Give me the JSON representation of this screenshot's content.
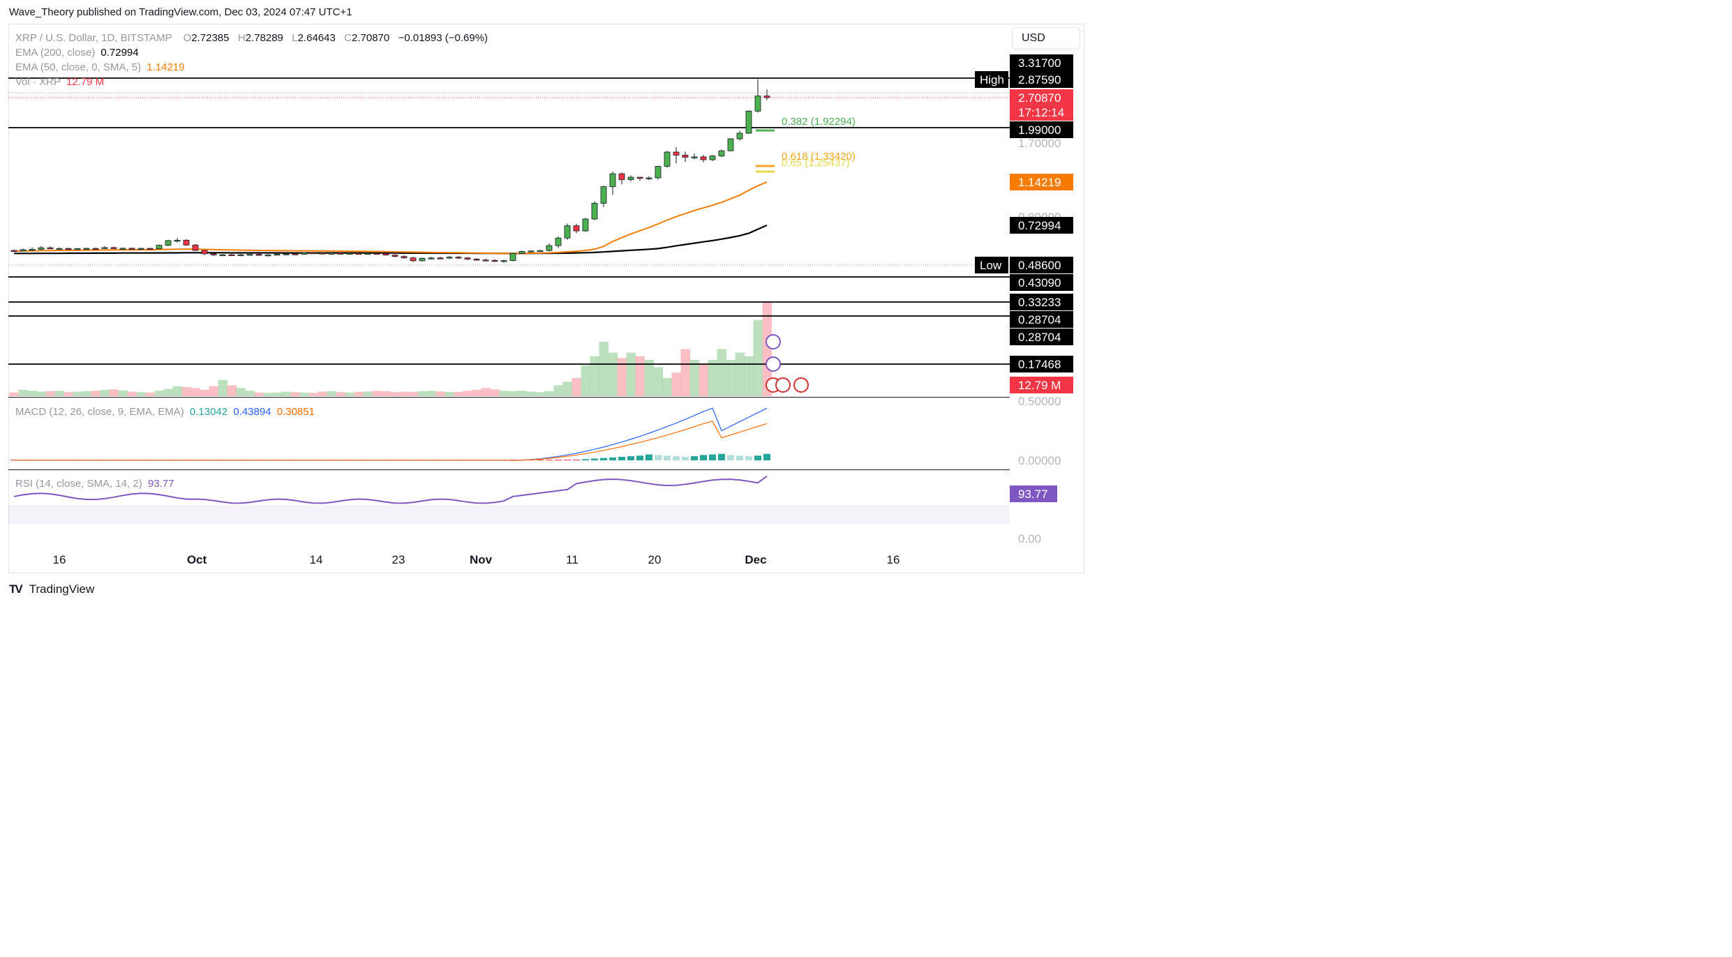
{
  "header": {
    "published_by": "Wave_Theory published on TradingView.com, Dec 03, 2024 07:47 UTC+1"
  },
  "legend": {
    "symbol": "XRP / U.S. Dollar, 1D, BITSTAMP",
    "o_label": "O",
    "o_value": "2.72385",
    "h_label": "H",
    "h_value": "2.78289",
    "l_label": "L",
    "l_value": "2.64643",
    "c_label": "C",
    "c_value": "2.70870",
    "change": "−0.01893 (−0.69%)",
    "ema200_label": "EMA (200, close)",
    "ema200_value": "0.72994",
    "ema50_label": "EMA (50, close, 0, SMA, 5)",
    "ema50_value": "1.14219",
    "vol_label": "Vol · XRP",
    "vol_value": "12.79 M"
  },
  "currency_button": "USD",
  "price_scale": {
    "labels": [
      {
        "text": "3.31700",
        "style": "black"
      },
      {
        "text": "2.87590",
        "style": "black",
        "tag": "High"
      },
      {
        "text": "2.70870",
        "style": "red"
      },
      {
        "text": "17:12:14",
        "style": "red"
      },
      {
        "text": "1.99000",
        "style": "black"
      },
      {
        "text": "1.70000",
        "style": "faded"
      },
      {
        "text": "1.14219",
        "style": "orange"
      },
      {
        "text": "0.80000",
        "style": "faded"
      },
      {
        "text": "0.72994",
        "style": "black"
      },
      {
        "text": "0.48600",
        "style": "black",
        "tag": "Low"
      },
      {
        "text": "0.43090",
        "style": "black"
      },
      {
        "text": "0.33233",
        "style": "black"
      },
      {
        "text": "0.28704",
        "style": "black"
      },
      {
        "text": "0.28704",
        "style": "black"
      },
      {
        "text": "0.17468",
        "style": "black"
      },
      {
        "text": "12.79 M",
        "style": "red"
      }
    ]
  },
  "fib": {
    "l382": "0.382 (1.92294)",
    "l618": "0.618 (1.33420)",
    "l65": "0.65 (1.25437)"
  },
  "macd": {
    "label": "MACD (12, 26, close, 9, EMA, EMA)",
    "hist": "0.13042",
    "macd": "0.43894",
    "signal": "0.30851",
    "scale_top": "0.50000",
    "scale_zero": "0.00000"
  },
  "rsi": {
    "label": "RSI (14, close, SMA, 14, 2)",
    "value": "93.77",
    "scale_zero": "0.00"
  },
  "time_axis": [
    "16",
    "Oct",
    "14",
    "23",
    "Nov",
    "11",
    "20",
    "Dec",
    "16"
  ],
  "footer": {
    "brand": "TradingView"
  },
  "colors": {
    "up": "#4caf50",
    "down": "#f23645",
    "ema50": "#f57c00",
    "ema200": "#000000",
    "macd": "#2962ff",
    "signal": "#ff6d00",
    "rsi": "#7e57c2",
    "fib382": "#4caf50",
    "fib618": "#f5a623",
    "fib65": "#e8d84a",
    "vol_up": "#a5d6a7",
    "vol_down": "#f7a9b0"
  },
  "chart_data": {
    "type": "candlestick",
    "symbol": "XRP / U.S. Dollar",
    "interval": "1D",
    "exchange": "BITSTAMP",
    "x_ticks": [
      "16",
      "Oct",
      "14",
      "23",
      "Nov",
      "11",
      "20",
      "Dec",
      "16"
    ],
    "candles": [
      {
        "o": 0.576,
        "h": 0.584,
        "l": 0.568,
        "c": 0.57
      },
      {
        "o": 0.57,
        "h": 0.598,
        "l": 0.566,
        "c": 0.585
      },
      {
        "o": 0.585,
        "h": 0.605,
        "l": 0.578,
        "c": 0.589
      },
      {
        "o": 0.589,
        "h": 0.612,
        "l": 0.581,
        "c": 0.603
      },
      {
        "o": 0.603,
        "h": 0.61,
        "l": 0.59,
        "c": 0.594
      },
      {
        "o": 0.594,
        "h": 0.605,
        "l": 0.586,
        "c": 0.598
      },
      {
        "o": 0.598,
        "h": 0.603,
        "l": 0.589,
        "c": 0.596
      },
      {
        "o": 0.596,
        "h": 0.601,
        "l": 0.59,
        "c": 0.597
      },
      {
        "o": 0.597,
        "h": 0.604,
        "l": 0.592,
        "c": 0.599
      },
      {
        "o": 0.599,
        "h": 0.603,
        "l": 0.593,
        "c": 0.597
      },
      {
        "o": 0.597,
        "h": 0.611,
        "l": 0.593,
        "c": 0.604
      },
      {
        "o": 0.604,
        "h": 0.609,
        "l": 0.595,
        "c": 0.599
      },
      {
        "o": 0.599,
        "h": 0.604,
        "l": 0.594,
        "c": 0.6
      },
      {
        "o": 0.6,
        "h": 0.604,
        "l": 0.595,
        "c": 0.598
      },
      {
        "o": 0.598,
        "h": 0.603,
        "l": 0.594,
        "c": 0.599
      },
      {
        "o": 0.599,
        "h": 0.603,
        "l": 0.591,
        "c": 0.595
      },
      {
        "o": 0.595,
        "h": 0.62,
        "l": 0.593,
        "c": 0.616
      },
      {
        "o": 0.616,
        "h": 0.645,
        "l": 0.611,
        "c": 0.641
      },
      {
        "o": 0.641,
        "h": 0.655,
        "l": 0.63,
        "c": 0.643
      },
      {
        "o": 0.643,
        "h": 0.648,
        "l": 0.612,
        "c": 0.617
      },
      {
        "o": 0.617,
        "h": 0.622,
        "l": 0.57,
        "c": 0.577
      },
      {
        "o": 0.577,
        "h": 0.582,
        "l": 0.534,
        "c": 0.541
      },
      {
        "o": 0.541,
        "h": 0.548,
        "l": 0.528,
        "c": 0.535
      },
      {
        "o": 0.535,
        "h": 0.541,
        "l": 0.529,
        "c": 0.536
      },
      {
        "o": 0.536,
        "h": 0.541,
        "l": 0.529,
        "c": 0.534
      },
      {
        "o": 0.534,
        "h": 0.54,
        "l": 0.528,
        "c": 0.536
      },
      {
        "o": 0.536,
        "h": 0.543,
        "l": 0.532,
        "c": 0.538
      },
      {
        "o": 0.538,
        "h": 0.543,
        "l": 0.53,
        "c": 0.533
      },
      {
        "o": 0.533,
        "h": 0.54,
        "l": 0.529,
        "c": 0.535
      },
      {
        "o": 0.535,
        "h": 0.542,
        "l": 0.531,
        "c": 0.539
      },
      {
        "o": 0.539,
        "h": 0.545,
        "l": 0.533,
        "c": 0.541
      },
      {
        "o": 0.541,
        "h": 0.546,
        "l": 0.534,
        "c": 0.538
      },
      {
        "o": 0.538,
        "h": 0.556,
        "l": 0.535,
        "c": 0.552
      },
      {
        "o": 0.552,
        "h": 0.56,
        "l": 0.545,
        "c": 0.549
      },
      {
        "o": 0.549,
        "h": 0.555,
        "l": 0.543,
        "c": 0.546
      },
      {
        "o": 0.546,
        "h": 0.552,
        "l": 0.54,
        "c": 0.548
      },
      {
        "o": 0.548,
        "h": 0.553,
        "l": 0.541,
        "c": 0.545
      },
      {
        "o": 0.545,
        "h": 0.551,
        "l": 0.539,
        "c": 0.547
      },
      {
        "o": 0.547,
        "h": 0.552,
        "l": 0.54,
        "c": 0.544
      },
      {
        "o": 0.544,
        "h": 0.55,
        "l": 0.538,
        "c": 0.546
      },
      {
        "o": 0.546,
        "h": 0.551,
        "l": 0.539,
        "c": 0.543
      },
      {
        "o": 0.543,
        "h": 0.549,
        "l": 0.531,
        "c": 0.534
      },
      {
        "o": 0.534,
        "h": 0.539,
        "l": 0.523,
        "c": 0.527
      },
      {
        "o": 0.527,
        "h": 0.533,
        "l": 0.516,
        "c": 0.52
      },
      {
        "o": 0.52,
        "h": 0.526,
        "l": 0.501,
        "c": 0.506
      },
      {
        "o": 0.506,
        "h": 0.522,
        "l": 0.503,
        "c": 0.518
      },
      {
        "o": 0.518,
        "h": 0.525,
        "l": 0.512,
        "c": 0.52
      },
      {
        "o": 0.52,
        "h": 0.526,
        "l": 0.514,
        "c": 0.519
      },
      {
        "o": 0.519,
        "h": 0.529,
        "l": 0.514,
        "c": 0.524
      },
      {
        "o": 0.524,
        "h": 0.529,
        "l": 0.515,
        "c": 0.52
      },
      {
        "o": 0.52,
        "h": 0.525,
        "l": 0.509,
        "c": 0.514
      },
      {
        "o": 0.514,
        "h": 0.519,
        "l": 0.505,
        "c": 0.51
      },
      {
        "o": 0.51,
        "h": 0.516,
        "l": 0.503,
        "c": 0.508
      },
      {
        "o": 0.508,
        "h": 0.513,
        "l": 0.5,
        "c": 0.505
      },
      {
        "o": 0.505,
        "h": 0.512,
        "l": 0.497,
        "c": 0.507
      },
      {
        "o": 0.507,
        "h": 0.549,
        "l": 0.504,
        "c": 0.545
      },
      {
        "o": 0.545,
        "h": 0.575,
        "l": 0.54,
        "c": 0.566
      },
      {
        "o": 0.566,
        "h": 0.579,
        "l": 0.554,
        "c": 0.571
      },
      {
        "o": 0.571,
        "h": 0.584,
        "l": 0.561,
        "c": 0.575
      },
      {
        "o": 0.575,
        "h": 0.626,
        "l": 0.565,
        "c": 0.614
      },
      {
        "o": 0.614,
        "h": 0.665,
        "l": 0.602,
        "c": 0.655
      },
      {
        "o": 0.655,
        "h": 0.744,
        "l": 0.645,
        "c": 0.727
      },
      {
        "o": 0.727,
        "h": 0.742,
        "l": 0.682,
        "c": 0.696
      },
      {
        "o": 0.696,
        "h": 0.792,
        "l": 0.69,
        "c": 0.782
      },
      {
        "o": 0.782,
        "h": 0.938,
        "l": 0.772,
        "c": 0.92
      },
      {
        "o": 0.92,
        "h": 1.1,
        "l": 0.885,
        "c": 1.09
      },
      {
        "o": 1.09,
        "h": 1.271,
        "l": 1.002,
        "c": 1.243
      },
      {
        "o": 1.243,
        "h": 1.26,
        "l": 1.115,
        "c": 1.171
      },
      {
        "o": 1.171,
        "h": 1.223,
        "l": 1.148,
        "c": 1.2
      },
      {
        "o": 1.2,
        "h": 1.205,
        "l": 1.158,
        "c": 1.186
      },
      {
        "o": 1.186,
        "h": 1.21,
        "l": 1.165,
        "c": 1.192
      },
      {
        "o": 1.192,
        "h": 1.348,
        "l": 1.17,
        "c": 1.34
      },
      {
        "o": 1.34,
        "h": 1.57,
        "l": 1.32,
        "c": 1.55
      },
      {
        "o": 1.55,
        "h": 1.63,
        "l": 1.384,
        "c": 1.502
      },
      {
        "o": 1.502,
        "h": 1.558,
        "l": 1.401,
        "c": 1.47
      },
      {
        "o": 1.47,
        "h": 1.53,
        "l": 1.439,
        "c": 1.476
      },
      {
        "o": 1.476,
        "h": 1.504,
        "l": 1.396,
        "c": 1.434
      },
      {
        "o": 1.434,
        "h": 1.506,
        "l": 1.414,
        "c": 1.49
      },
      {
        "o": 1.49,
        "h": 1.59,
        "l": 1.473,
        "c": 1.57
      },
      {
        "o": 1.57,
        "h": 1.8,
        "l": 1.563,
        "c": 1.787
      },
      {
        "o": 1.787,
        "h": 1.968,
        "l": 1.751,
        "c": 1.91
      },
      {
        "o": 1.91,
        "h": 2.397,
        "l": 1.895,
        "c": 2.38
      },
      {
        "o": 2.38,
        "h": 2.883,
        "l": 2.352,
        "c": 2.724
      },
      {
        "o": 2.724,
        "h": 2.783,
        "l": 2.646,
        "c": 2.709
      }
    ],
    "ema50": [
      0.57,
      0.571,
      0.572,
      0.574,
      0.575,
      0.576,
      0.577,
      0.578,
      0.579,
      0.58,
      0.581,
      0.582,
      0.583,
      0.583,
      0.584,
      0.584,
      0.586,
      0.588,
      0.59,
      0.591,
      0.59,
      0.588,
      0.586,
      0.584,
      0.582,
      0.58,
      0.579,
      0.577,
      0.576,
      0.575,
      0.574,
      0.573,
      0.573,
      0.572,
      0.571,
      0.57,
      0.569,
      0.568,
      0.567,
      0.566,
      0.565,
      0.564,
      0.562,
      0.56,
      0.558,
      0.557,
      0.555,
      0.554,
      0.553,
      0.552,
      0.55,
      0.549,
      0.547,
      0.546,
      0.545,
      0.545,
      0.546,
      0.547,
      0.548,
      0.551,
      0.555,
      0.562,
      0.568,
      0.577,
      0.59,
      0.61,
      0.636,
      0.657,
      0.678,
      0.697,
      0.716,
      0.741,
      0.773,
      0.802,
      0.828,
      0.854,
      0.877,
      0.901,
      0.928,
      0.962,
      0.999,
      1.05,
      1.1,
      1.142
    ],
    "ema200": [
      0.545,
      0.545,
      0.545,
      0.546,
      0.546,
      0.546,
      0.547,
      0.547,
      0.547,
      0.548,
      0.548,
      0.548,
      0.549,
      0.549,
      0.549,
      0.55,
      0.55,
      0.551,
      0.551,
      0.552,
      0.552,
      0.552,
      0.552,
      0.552,
      0.551,
      0.551,
      0.551,
      0.551,
      0.551,
      0.551,
      0.55,
      0.55,
      0.55,
      0.55,
      0.55,
      0.55,
      0.55,
      0.55,
      0.55,
      0.549,
      0.549,
      0.549,
      0.549,
      0.548,
      0.548,
      0.548,
      0.548,
      0.547,
      0.547,
      0.547,
      0.547,
      0.546,
      0.546,
      0.546,
      0.545,
      0.545,
      0.545,
      0.545,
      0.546,
      0.546,
      0.547,
      0.548,
      0.55,
      0.552,
      0.555,
      0.56,
      0.566,
      0.572,
      0.578,
      0.584,
      0.59,
      0.597,
      0.605,
      0.613,
      0.62,
      0.627,
      0.634,
      0.641,
      0.649,
      0.658,
      0.668,
      0.682,
      0.706,
      0.73
    ],
    "volume_relative": [
      0.2,
      0.35,
      0.3,
      0.25,
      0.28,
      0.3,
      0.22,
      0.25,
      0.28,
      0.3,
      0.35,
      0.38,
      0.32,
      0.25,
      0.22,
      0.2,
      0.3,
      0.4,
      0.55,
      0.5,
      0.45,
      0.35,
      0.55,
      0.9,
      0.6,
      0.45,
      0.3,
      0.2,
      0.18,
      0.2,
      0.25,
      0.22,
      0.2,
      0.18,
      0.25,
      0.28,
      0.22,
      0.2,
      0.24,
      0.26,
      0.3,
      0.28,
      0.22,
      0.25,
      0.24,
      0.28,
      0.3,
      0.26,
      0.22,
      0.24,
      0.3,
      0.35,
      0.45,
      0.38,
      0.3,
      0.28,
      0.3,
      0.25,
      0.22,
      0.28,
      0.6,
      0.8,
      1.0,
      1.7,
      2.2,
      3.0,
      2.4,
      2.1,
      2.4,
      2.2,
      2.0,
      1.6,
      1.0,
      1.3,
      2.6,
      2.0,
      1.8,
      2.0,
      2.6,
      2.0,
      2.4,
      2.2,
      4.2,
      5.2
    ],
    "volume_last": "12.79 M",
    "macd_last": {
      "hist": 0.13042,
      "macd": 0.43894,
      "signal": 0.30851
    },
    "macd_ylim": [
      0,
      0.5
    ],
    "rsi_last": 93.77,
    "horizontal_levels": [
      3.317,
      2.8759,
      1.99,
      0.4309,
      0.33233,
      0.28704,
      0.17468
    ],
    "fib_levels": [
      {
        "ratio": 0.382,
        "price": 1.92294
      },
      {
        "ratio": 0.618,
        "price": 1.3342
      },
      {
        "ratio": 0.65,
        "price": 1.25437
      }
    ],
    "high": 2.8759,
    "low": 0.486,
    "last_price": 2.7087,
    "grid": false
  }
}
